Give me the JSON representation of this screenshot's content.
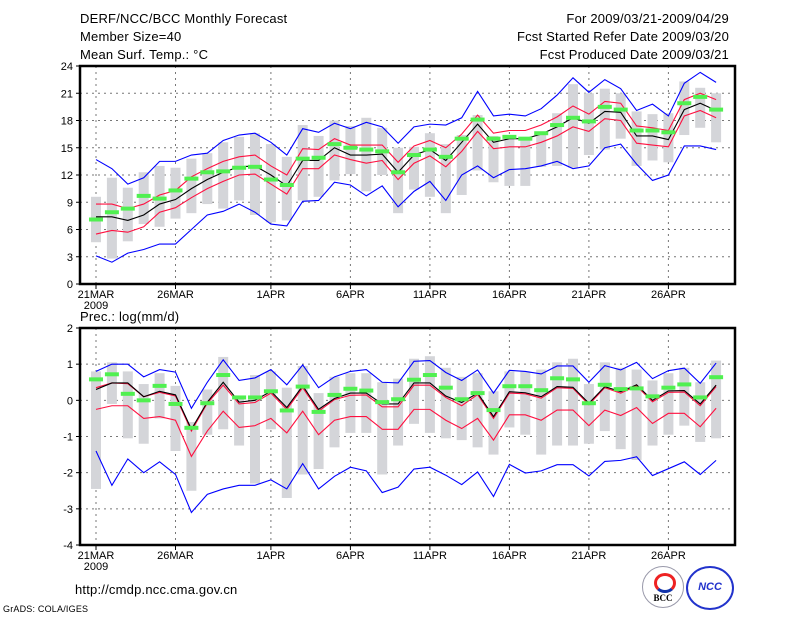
{
  "header": {
    "title": "DERF/NCC/BCC Monthly Forecast",
    "member_size": "Member Size=40",
    "variable": "Mean Surf. Temp.: °C",
    "period": "For 2009/03/21-2009/04/29",
    "start_date": "Fcst Started Refer Date 2009/03/20",
    "produced_date": "Fcst Produced Date 2009/03/21"
  },
  "footer": {
    "url": "http://cmdp.ncc.cma.gov.cn",
    "credit": "GrADS: COLA/IGES",
    "logo_bcc": "BCC",
    "logo_ncc": "NCC"
  },
  "colors": {
    "mean": "#000000",
    "spread": "#ff1040",
    "extreme": "#0000ff",
    "median": "#50f050",
    "box": "#d4d5d9"
  },
  "chart_data": [
    {
      "type": "line",
      "title": "Mean Surf. Temp.: °C",
      "ylim": [
        0,
        24
      ],
      "yticks": [
        "0",
        "3",
        "6",
        "9",
        "12",
        "15",
        "18",
        "21",
        "24"
      ],
      "xtick_days": [
        0,
        5,
        11,
        16,
        21,
        26,
        31,
        36
      ],
      "xtick_labels": [
        "21MAR",
        "26MAR",
        "1APR",
        "6APR",
        "11APR",
        "16APR",
        "21APR",
        "26APR"
      ],
      "xtick_year": "2009",
      "grid": true,
      "days": 40,
      "series": [
        {
          "name": "max",
          "color": "extreme",
          "values": [
            13.7,
            12.7,
            11.0,
            11.7,
            13.5,
            13.5,
            14.2,
            14.4,
            15.8,
            16.4,
            16.6,
            15.6,
            14.2,
            17.1,
            16.7,
            17.7,
            17.1,
            17.8,
            17.3,
            15.5,
            17.3,
            17.6,
            17.5,
            18.3,
            21.2,
            18.5,
            18.7,
            18.5,
            19.3,
            20.8,
            22.7,
            21.1,
            22.5,
            21.5,
            19.1,
            19.8,
            18.5,
            22.1,
            23.3,
            22.2
          ]
        },
        {
          "name": "mean+sd",
          "color": "spread",
          "values": [
            8.8,
            8.8,
            8.3,
            8.8,
            9.8,
            10.3,
            11.8,
            12.7,
            13.5,
            14.0,
            14.2,
            13.0,
            12.0,
            14.9,
            14.8,
            16.0,
            15.3,
            15.3,
            15.3,
            13.4,
            15.2,
            15.8,
            15.0,
            16.5,
            18.6,
            16.6,
            16.9,
            16.9,
            17.5,
            18.4,
            19.6,
            18.7,
            20.1,
            19.9,
            17.4,
            17.2,
            16.9,
            20.3,
            21.0,
            20.3
          ]
        },
        {
          "name": "mean",
          "color": "mean",
          "values": [
            7.4,
            7.4,
            7.0,
            7.6,
            8.8,
            9.3,
            10.5,
            11.5,
            12.3,
            12.9,
            13.0,
            12.0,
            10.8,
            13.6,
            13.6,
            15.0,
            14.2,
            14.2,
            14.3,
            12.3,
            14.2,
            14.8,
            13.6,
            15.6,
            17.6,
            15.6,
            16.0,
            16.0,
            16.5,
            17.3,
            18.3,
            17.7,
            19.0,
            18.9,
            16.3,
            16.3,
            15.9,
            19.2,
            19.9,
            19.1
          ]
        },
        {
          "name": "mean-sd",
          "color": "spread",
          "values": [
            5.5,
            5.9,
            5.7,
            6.3,
            7.9,
            8.4,
            9.5,
            10.5,
            11.3,
            12.0,
            12.1,
            11.0,
            9.9,
            12.7,
            12.7,
            14.2,
            13.7,
            13.3,
            13.6,
            11.5,
            13.3,
            14.1,
            12.9,
            14.6,
            16.8,
            14.9,
            15.1,
            15.1,
            15.6,
            16.3,
            17.3,
            16.8,
            18.2,
            18.0,
            15.5,
            15.3,
            15.1,
            18.5,
            19.1,
            18.3
          ]
        },
        {
          "name": "min",
          "color": "extreme",
          "values": [
            3.1,
            2.4,
            3.4,
            3.8,
            4.4,
            4.4,
            6.0,
            7.6,
            8.0,
            8.8,
            7.9,
            6.6,
            6.4,
            9.1,
            9.2,
            11.2,
            10.9,
            9.7,
            10.8,
            8.5,
            10.2,
            11.3,
            9.2,
            12.0,
            13.0,
            11.7,
            12.6,
            12.7,
            13.0,
            13.5,
            12.7,
            13.0,
            15.0,
            15.4,
            13.2,
            11.4,
            12.0,
            15.2,
            15.2,
            14.8
          ]
        }
      ],
      "median": [
        7.1,
        7.9,
        8.3,
        9.7,
        9.4,
        10.3,
        11.6,
        12.3,
        12.4,
        12.8,
        12.9,
        11.5,
        10.9,
        13.8,
        13.9,
        15.4,
        15.0,
        14.8,
        14.6,
        12.3,
        14.2,
        14.8,
        14.0,
        16.0,
        18.1,
        16.0,
        16.2,
        16.0,
        16.6,
        17.5,
        18.3,
        17.9,
        19.5,
        19.2,
        16.9,
        16.9,
        16.7,
        19.9,
        20.6,
        19.2
      ],
      "box_low": [
        4.6,
        2.8,
        4.7,
        6.6,
        6.3,
        7.2,
        7.8,
        8.8,
        8.3,
        9.2,
        7.6,
        6.8,
        7.0,
        9.2,
        9.6,
        11.4,
        12.1,
        10.2,
        12.0,
        7.8,
        10.4,
        9.6,
        7.8,
        9.8,
        12.5,
        11.2,
        10.8,
        10.8,
        12.9,
        13.0,
        12.8,
        14.2,
        14.8,
        16.0,
        13.0,
        13.6,
        13.4,
        16.4,
        17.2,
        15.6
      ],
      "box_high": [
        9.6,
        11.7,
        10.6,
        12.3,
        13.0,
        12.8,
        13.8,
        14.4,
        15.6,
        16.2,
        16.6,
        15.4,
        14.0,
        17.5,
        16.3,
        18.0,
        17.4,
        18.3,
        17.2,
        15.0,
        15.1,
        16.6,
        15.4,
        16.4,
        18.6,
        16.3,
        16.3,
        16.1,
        16.6,
        18.8,
        22.0,
        21.0,
        21.5,
        21.0,
        19.0,
        18.7,
        18.8,
        22.3,
        21.6,
        21.0
      ]
    },
    {
      "type": "line",
      "title": "Prec.: log(mm/d)",
      "ylim": [
        -4,
        2
      ],
      "yticks": [
        "-4",
        "-3",
        "-2",
        "-1",
        "0",
        "1",
        "2"
      ],
      "xtick_days": [
        0,
        5,
        11,
        16,
        21,
        26,
        31,
        36
      ],
      "xtick_labels": [
        "21MAR",
        "26MAR",
        "1APR",
        "6APR",
        "11APR",
        "16APR",
        "21APR",
        "26APR"
      ],
      "xtick_year": "2009",
      "grid": true,
      "days": 40,
      "series": [
        {
          "name": "max",
          "color": "extreme",
          "values": [
            0.8,
            1.0,
            1.0,
            0.65,
            0.85,
            0.78,
            -0.22,
            0.5,
            1.12,
            0.55,
            0.62,
            0.85,
            0.43,
            0.98,
            0.35,
            0.65,
            0.8,
            0.85,
            0.5,
            0.48,
            1.08,
            1.1,
            0.77,
            0.55,
            0.84,
            0.2,
            0.83,
            0.8,
            0.73,
            0.95,
            0.95,
            0.5,
            0.96,
            0.84,
            1.05,
            0.6,
            0.82,
            0.89,
            0.47,
            1.03
          ]
        },
        {
          "name": "mean+sd",
          "color": "spread",
          "values": [
            0.35,
            0.48,
            0.46,
            0.1,
            0.22,
            0.12,
            -0.85,
            -0.08,
            0.42,
            -0.1,
            -0.06,
            0.2,
            -0.25,
            0.35,
            -0.3,
            0.02,
            0.14,
            0.15,
            -0.18,
            -0.18,
            0.42,
            0.42,
            0.08,
            -0.15,
            0.16,
            -0.5,
            0.2,
            0.18,
            0.06,
            0.35,
            0.33,
            -0.12,
            0.35,
            0.2,
            0.4,
            -0.04,
            0.22,
            0.23,
            -0.15,
            0.38
          ]
        },
        {
          "name": "mean",
          "color": "mean",
          "values": [
            0.3,
            0.48,
            0.48,
            0.1,
            0.25,
            0.15,
            -0.8,
            -0.05,
            0.5,
            -0.05,
            0.0,
            0.25,
            -0.2,
            0.4,
            -0.25,
            0.05,
            0.2,
            0.2,
            -0.1,
            -0.1,
            0.48,
            0.48,
            0.12,
            -0.06,
            0.2,
            -0.45,
            0.24,
            0.21,
            0.1,
            0.38,
            0.36,
            -0.08,
            0.38,
            0.24,
            0.43,
            0.0,
            0.26,
            0.27,
            -0.1,
            0.42
          ]
        },
        {
          "name": "mean-sd",
          "color": "spread",
          "values": [
            -0.25,
            -0.15,
            -0.15,
            -0.5,
            -0.45,
            -0.55,
            -1.55,
            -0.85,
            -0.3,
            -0.75,
            -0.7,
            -0.5,
            -0.9,
            -0.3,
            -0.95,
            -0.55,
            -0.45,
            -0.45,
            -0.8,
            -0.8,
            -0.25,
            -0.25,
            -0.55,
            -0.78,
            -0.5,
            -1.1,
            -0.4,
            -0.4,
            -0.55,
            -0.27,
            -0.27,
            -0.7,
            -0.27,
            -0.42,
            -0.2,
            -0.64,
            -0.36,
            -0.36,
            -0.73,
            -0.22
          ]
        },
        {
          "name": "min",
          "color": "extreme",
          "values": [
            -1.4,
            -2.35,
            -1.62,
            -2.0,
            -1.7,
            -2.05,
            -3.1,
            -2.6,
            -2.45,
            -2.35,
            -2.35,
            -2.2,
            -2.45,
            -1.75,
            -2.45,
            -2.1,
            -1.85,
            -1.95,
            -2.55,
            -2.4,
            -1.9,
            -1.85,
            -2.07,
            -2.33,
            -1.98,
            -2.66,
            -1.77,
            -2.01,
            -1.95,
            -1.78,
            -1.78,
            -2.09,
            -1.69,
            -1.66,
            -1.56,
            -2.08,
            -1.89,
            -1.7,
            -2.05,
            -1.66
          ]
        }
      ],
      "median": [
        0.58,
        0.72,
        0.18,
        0.0,
        0.4,
        -0.1,
        -0.76,
        -0.08,
        0.7,
        0.08,
        0.08,
        0.25,
        -0.28,
        0.38,
        -0.32,
        0.15,
        0.32,
        0.27,
        -0.05,
        0.03,
        0.57,
        0.7,
        0.35,
        0.03,
        0.2,
        -0.27,
        0.39,
        0.39,
        0.28,
        0.61,
        0.58,
        -0.08,
        0.43,
        0.31,
        0.33,
        0.11,
        0.35,
        0.44,
        0.08,
        0.64
      ],
      "box_low": [
        -2.45,
        -0.1,
        -1.05,
        -1.2,
        -0.5,
        -1.4,
        -2.5,
        -0.95,
        -0.8,
        -1.25,
        -2.3,
        -0.8,
        -2.7,
        -2.05,
        -1.9,
        -1.3,
        -0.9,
        -0.9,
        -2.05,
        -1.25,
        -0.65,
        -0.9,
        -1.05,
        -1.1,
        -1.3,
        -1.5,
        -0.75,
        -0.95,
        -1.5,
        -1.25,
        -1.25,
        -1.2,
        -0.85,
        -1.35,
        -1.65,
        -1.25,
        -0.95,
        -0.7,
        -1.15,
        -1.05
      ],
      "box_high": [
        0.8,
        1.05,
        0.8,
        0.45,
        0.75,
        0.4,
        -0.6,
        0.3,
        1.2,
        0.1,
        0.7,
        0.8,
        0.35,
        0.95,
        0.2,
        0.65,
        0.75,
        0.75,
        0.5,
        0.6,
        1.15,
        1.22,
        0.9,
        0.65,
        0.75,
        0.25,
        0.8,
        0.8,
        0.85,
        1.05,
        1.15,
        0.45,
        1.05,
        0.9,
        0.85,
        0.55,
        0.75,
        0.9,
        0.5,
        1.1
      ]
    }
  ]
}
